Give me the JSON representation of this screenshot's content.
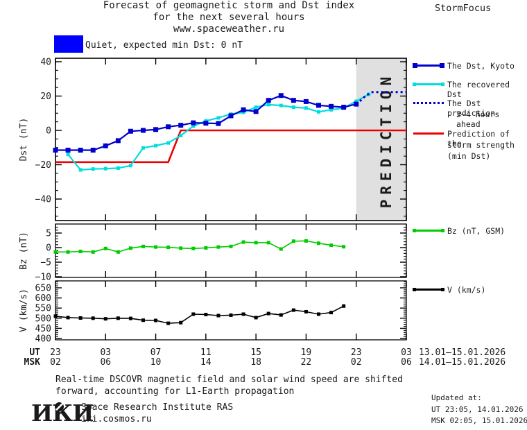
{
  "header": {
    "title_line1": "Forecast of geomagnetic storm and Dst index",
    "title_line2": "for the next several hours",
    "title_line3": "www.spaceweather.ru",
    "brand": "StormFocus"
  },
  "status_banner": {
    "label": "Quiet, expected min Dst: 0 nT",
    "box_color": "#0000ff"
  },
  "colors": {
    "band": "#e0e0e0",
    "band_text": "#c4c4c4",
    "axis_text": "#1a1a1a"
  },
  "chart_data": [
    {
      "type": "line",
      "panel": "dst",
      "ylabel": "Dst (nT)",
      "ylim": [
        -52.5,
        42
      ],
      "yticks": [
        40,
        20,
        0,
        -20,
        -40
      ],
      "x_unit": "hours since 23:00 UT 13.01.2026",
      "xlim": [
        0,
        28
      ],
      "xticks_hours": [
        0,
        4,
        8,
        12,
        16,
        20,
        24,
        28
      ],
      "grid": false,
      "prediction_band": {
        "start_hour": 24.0,
        "end_hour": 28,
        "label": "PREDICTION"
      },
      "series": [
        {
          "id": "storm_prediction",
          "name": "Prediction of the storm strength (min Dst)",
          "color": "#ee0000",
          "style": "solid",
          "points": [
            [
              0,
              -18.5
            ],
            [
              9,
              -18.5
            ],
            [
              10,
              0
            ],
            [
              28,
              0
            ]
          ]
        },
        {
          "id": "recovered",
          "name": "The recovered Dst",
          "color": "#00dddd",
          "marker": "square",
          "x_start": 1,
          "x_step": 1,
          "values": [
            -14,
            -23,
            -22.5,
            -22.3,
            -22,
            -20.5,
            -10.2,
            -8.9,
            -7.3,
            -3,
            2.5,
            5.5,
            7.3,
            9.5,
            10.5,
            13.5,
            15,
            14.5,
            13.5,
            13,
            10.8,
            12,
            13,
            17,
            21
          ]
        },
        {
          "id": "kyoto",
          "name": "The Dst, Kyoto",
          "color": "#0000cc",
          "marker": "square",
          "x_start": 0,
          "x_step": 1,
          "values": [
            -11.5,
            -11.5,
            -11.5,
            -11.5,
            -9,
            -6,
            -0.5,
            0,
            0.5,
            2.1,
            3,
            4.4,
            4.2,
            4,
            8.5,
            12,
            11,
            17.5,
            20.3,
            17.5,
            16.8,
            14.6,
            14,
            13.5,
            15.3
          ]
        },
        {
          "id": "dst_prediction",
          "name": "The Dst prediction 2–4 hours ahead",
          "color": "#0000cc",
          "style": "dotted",
          "points": [
            [
              24.3,
              17
            ],
            [
              24.8,
              20.5
            ],
            [
              25.3,
              22.3
            ],
            [
              28,
              22.3
            ]
          ]
        }
      ]
    },
    {
      "type": "line",
      "panel": "bz",
      "ylabel": "Bz (nT)",
      "ylim": [
        -10.2,
        8.1
      ],
      "yticks": [
        5,
        0,
        -5,
        -10
      ],
      "x_unit": "hours since 23:00 UT 13.01.2026",
      "xlim": [
        0,
        28
      ],
      "xticks_hours": [
        0,
        4,
        8,
        12,
        16,
        20,
        24,
        28
      ],
      "grid": false,
      "series": [
        {
          "id": "bz",
          "name": "Bz (nT, GSM)",
          "color": "#00cc00",
          "marker": "square",
          "x_start": 0,
          "x_step": 1,
          "values": [
            -1.5,
            -1.5,
            -1.3,
            -1.5,
            -0.3,
            -1.5,
            -0.2,
            0.4,
            0.2,
            0.1,
            -0.2,
            -0.3,
            -0.1,
            0.2,
            0.4,
            1.9,
            1.7,
            1.7,
            -0.5,
            2.2,
            2.3,
            1.5,
            0.8,
            0.3
          ]
        }
      ]
    },
    {
      "type": "line",
      "panel": "v",
      "ylabel": "V (km/s)",
      "ylim": [
        393,
        684
      ],
      "yticks": [
        650,
        600,
        550,
        500,
        450,
        400
      ],
      "x_unit": "hours since 23:00 UT 13.01.2026",
      "xlim": [
        0,
        28
      ],
      "xticks_hours": [
        0,
        4,
        8,
        12,
        16,
        20,
        24,
        28
      ],
      "grid": false,
      "series": [
        {
          "id": "v",
          "name": "V (km/s)",
          "color": "#000000",
          "marker": "square",
          "x_start": 0,
          "x_step": 1,
          "values": [
            510,
            503,
            501,
            500,
            497,
            500,
            499,
            490,
            489,
            475,
            478,
            520,
            518,
            513,
            515,
            520,
            503,
            523,
            516,
            540,
            532,
            520,
            528,
            560
          ]
        }
      ]
    }
  ],
  "legend": {
    "dst": [
      {
        "id": "kyoto",
        "lines": [
          "The Dst, Kyoto"
        ]
      },
      {
        "id": "recovered",
        "lines": [
          "The recovered Dst"
        ]
      },
      {
        "id": "dst_prediction",
        "lines": [
          "The Dst prediction",
          "2–4 hours ahead"
        ]
      },
      {
        "id": "storm_prediction",
        "lines": [
          "Prediction of the",
          "storm strength",
          "(min Dst)"
        ]
      }
    ],
    "bz": "Bz (nT, GSM)",
    "v": "V (km/s)"
  },
  "xaxis": {
    "ut_label": "UT",
    "msk_label": "MSK",
    "ut_ticks": [
      "23",
      "03",
      "07",
      "11",
      "15",
      "19",
      "23",
      "03"
    ],
    "msk_ticks": [
      "02",
      "06",
      "10",
      "14",
      "18",
      "22",
      "02",
      "06"
    ],
    "ut_dates": "13.01–15.01.2026",
    "msk_dates": "14.01–15.01.2026"
  },
  "footer": {
    "note_line1": "Real-time DSCOVR magnetic field and solar wind speed are shifted",
    "note_line2": "forward, accounting for L1-Earth propagation",
    "logo_text": "ИКИ",
    "org": "Space Research Institute RAS",
    "site": "iki.cosmos.ru"
  },
  "updated": {
    "label": "Updated at:",
    "ut": "UT  23:05, 14.01.2026",
    "msk": "MSK 02:05, 15.01.2026"
  }
}
